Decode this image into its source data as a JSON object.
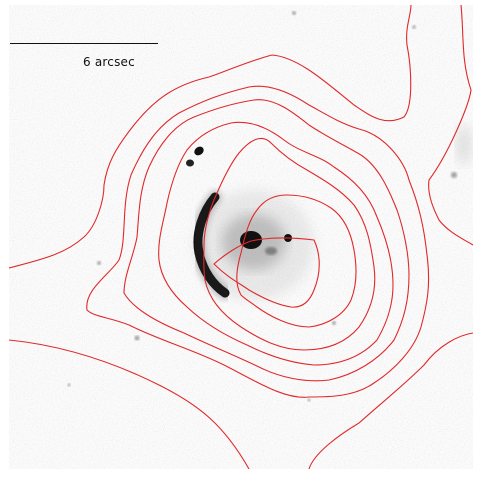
{
  "image": {
    "background_color": "#fbfbfb",
    "contour_color": "#e0282a",
    "object_color": "#111111"
  },
  "scale_bar": {
    "label": "6 arcsec"
  }
}
